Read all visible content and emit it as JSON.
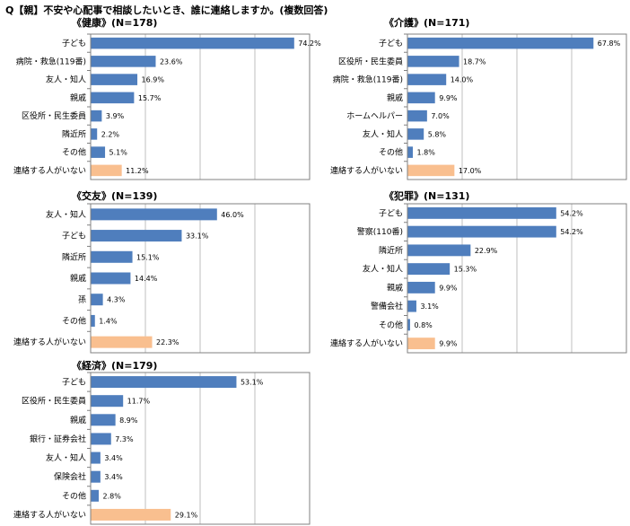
{
  "title": "Q【親】不安や心配事で相談したいとき、誰に連絡しますか。(複数回答)",
  "colors": {
    "bar": "#4f7ebd",
    "highlight": "#f9bf8f",
    "grid": "#bfbfbf",
    "axis": "#808080"
  },
  "chart_data": [
    {
      "type": "bar",
      "title": "《健康》(N=178)",
      "categories": [
        "子ども",
        "病院・救急(119番)",
        "友人・知人",
        "親戚",
        "区役所・民生委員",
        "隣近所",
        "その他",
        "連絡する人がいない"
      ],
      "values": [
        74.2,
        23.6,
        16.9,
        15.7,
        3.9,
        2.2,
        5.1,
        11.2
      ],
      "value_labels": [
        "74.2%",
        "23.6%",
        "16.9%",
        "15.7%",
        "3.9%",
        "2.2%",
        "5.1%",
        "11.2%"
      ],
      "highlight_index": 7,
      "xlim": [
        0,
        80
      ],
      "grid": true
    },
    {
      "type": "bar",
      "title": "《介護》(N=171)",
      "categories": [
        "子ども",
        "区役所・民生委員",
        "病院・救急(119番)",
        "親戚",
        "ホームヘルパー",
        "友人・知人",
        "その他",
        "連絡する人がいない"
      ],
      "values": [
        67.8,
        18.7,
        14.0,
        9.9,
        7.0,
        5.8,
        1.8,
        17.0
      ],
      "value_labels": [
        "67.8%",
        "18.7%",
        "14.0%",
        "9.9%",
        "7.0%",
        "5.8%",
        "1.8%",
        "17.0%"
      ],
      "highlight_index": 7,
      "xlim": [
        0,
        80
      ],
      "grid": true
    },
    {
      "type": "bar",
      "title": "《交友》(N=139)",
      "categories": [
        "友人・知人",
        "子ども",
        "隣近所",
        "親戚",
        "孫",
        "その他",
        "連絡する人がいない"
      ],
      "values": [
        46.0,
        33.1,
        15.1,
        14.4,
        4.3,
        1.4,
        22.3
      ],
      "value_labels": [
        "46.0%",
        "33.1%",
        "15.1%",
        "14.4%",
        "4.3%",
        "1.4%",
        "22.3%"
      ],
      "highlight_index": 6,
      "xlim": [
        0,
        80
      ],
      "grid": true
    },
    {
      "type": "bar",
      "title": "《犯罪》(N=131)",
      "categories": [
        "子ども",
        "警察(110番)",
        "隣近所",
        "友人・知人",
        "親戚",
        "警備会社",
        "その他",
        "連絡する人がいない"
      ],
      "values": [
        54.2,
        54.2,
        22.9,
        15.3,
        9.9,
        3.1,
        0.8,
        9.9
      ],
      "value_labels": [
        "54.2%",
        "54.2%",
        "22.9%",
        "15.3%",
        "9.9%",
        "3.1%",
        "0.8%",
        "9.9%"
      ],
      "highlight_index": 7,
      "xlim": [
        0,
        80
      ],
      "grid": true
    },
    {
      "type": "bar",
      "title": "《経済》(N=179)",
      "categories": [
        "子ども",
        "区役所・民生委員",
        "親戚",
        "銀行・証券会社",
        "友人・知人",
        "保険会社",
        "その他",
        "連絡する人がいない"
      ],
      "values": [
        53.1,
        11.7,
        8.9,
        7.3,
        3.4,
        3.4,
        2.8,
        29.1
      ],
      "value_labels": [
        "53.1%",
        "11.7%",
        "8.9%",
        "7.3%",
        "3.4%",
        "3.4%",
        "2.8%",
        "29.1%"
      ],
      "highlight_index": 7,
      "xlim": [
        0,
        80
      ],
      "grid": true
    }
  ]
}
